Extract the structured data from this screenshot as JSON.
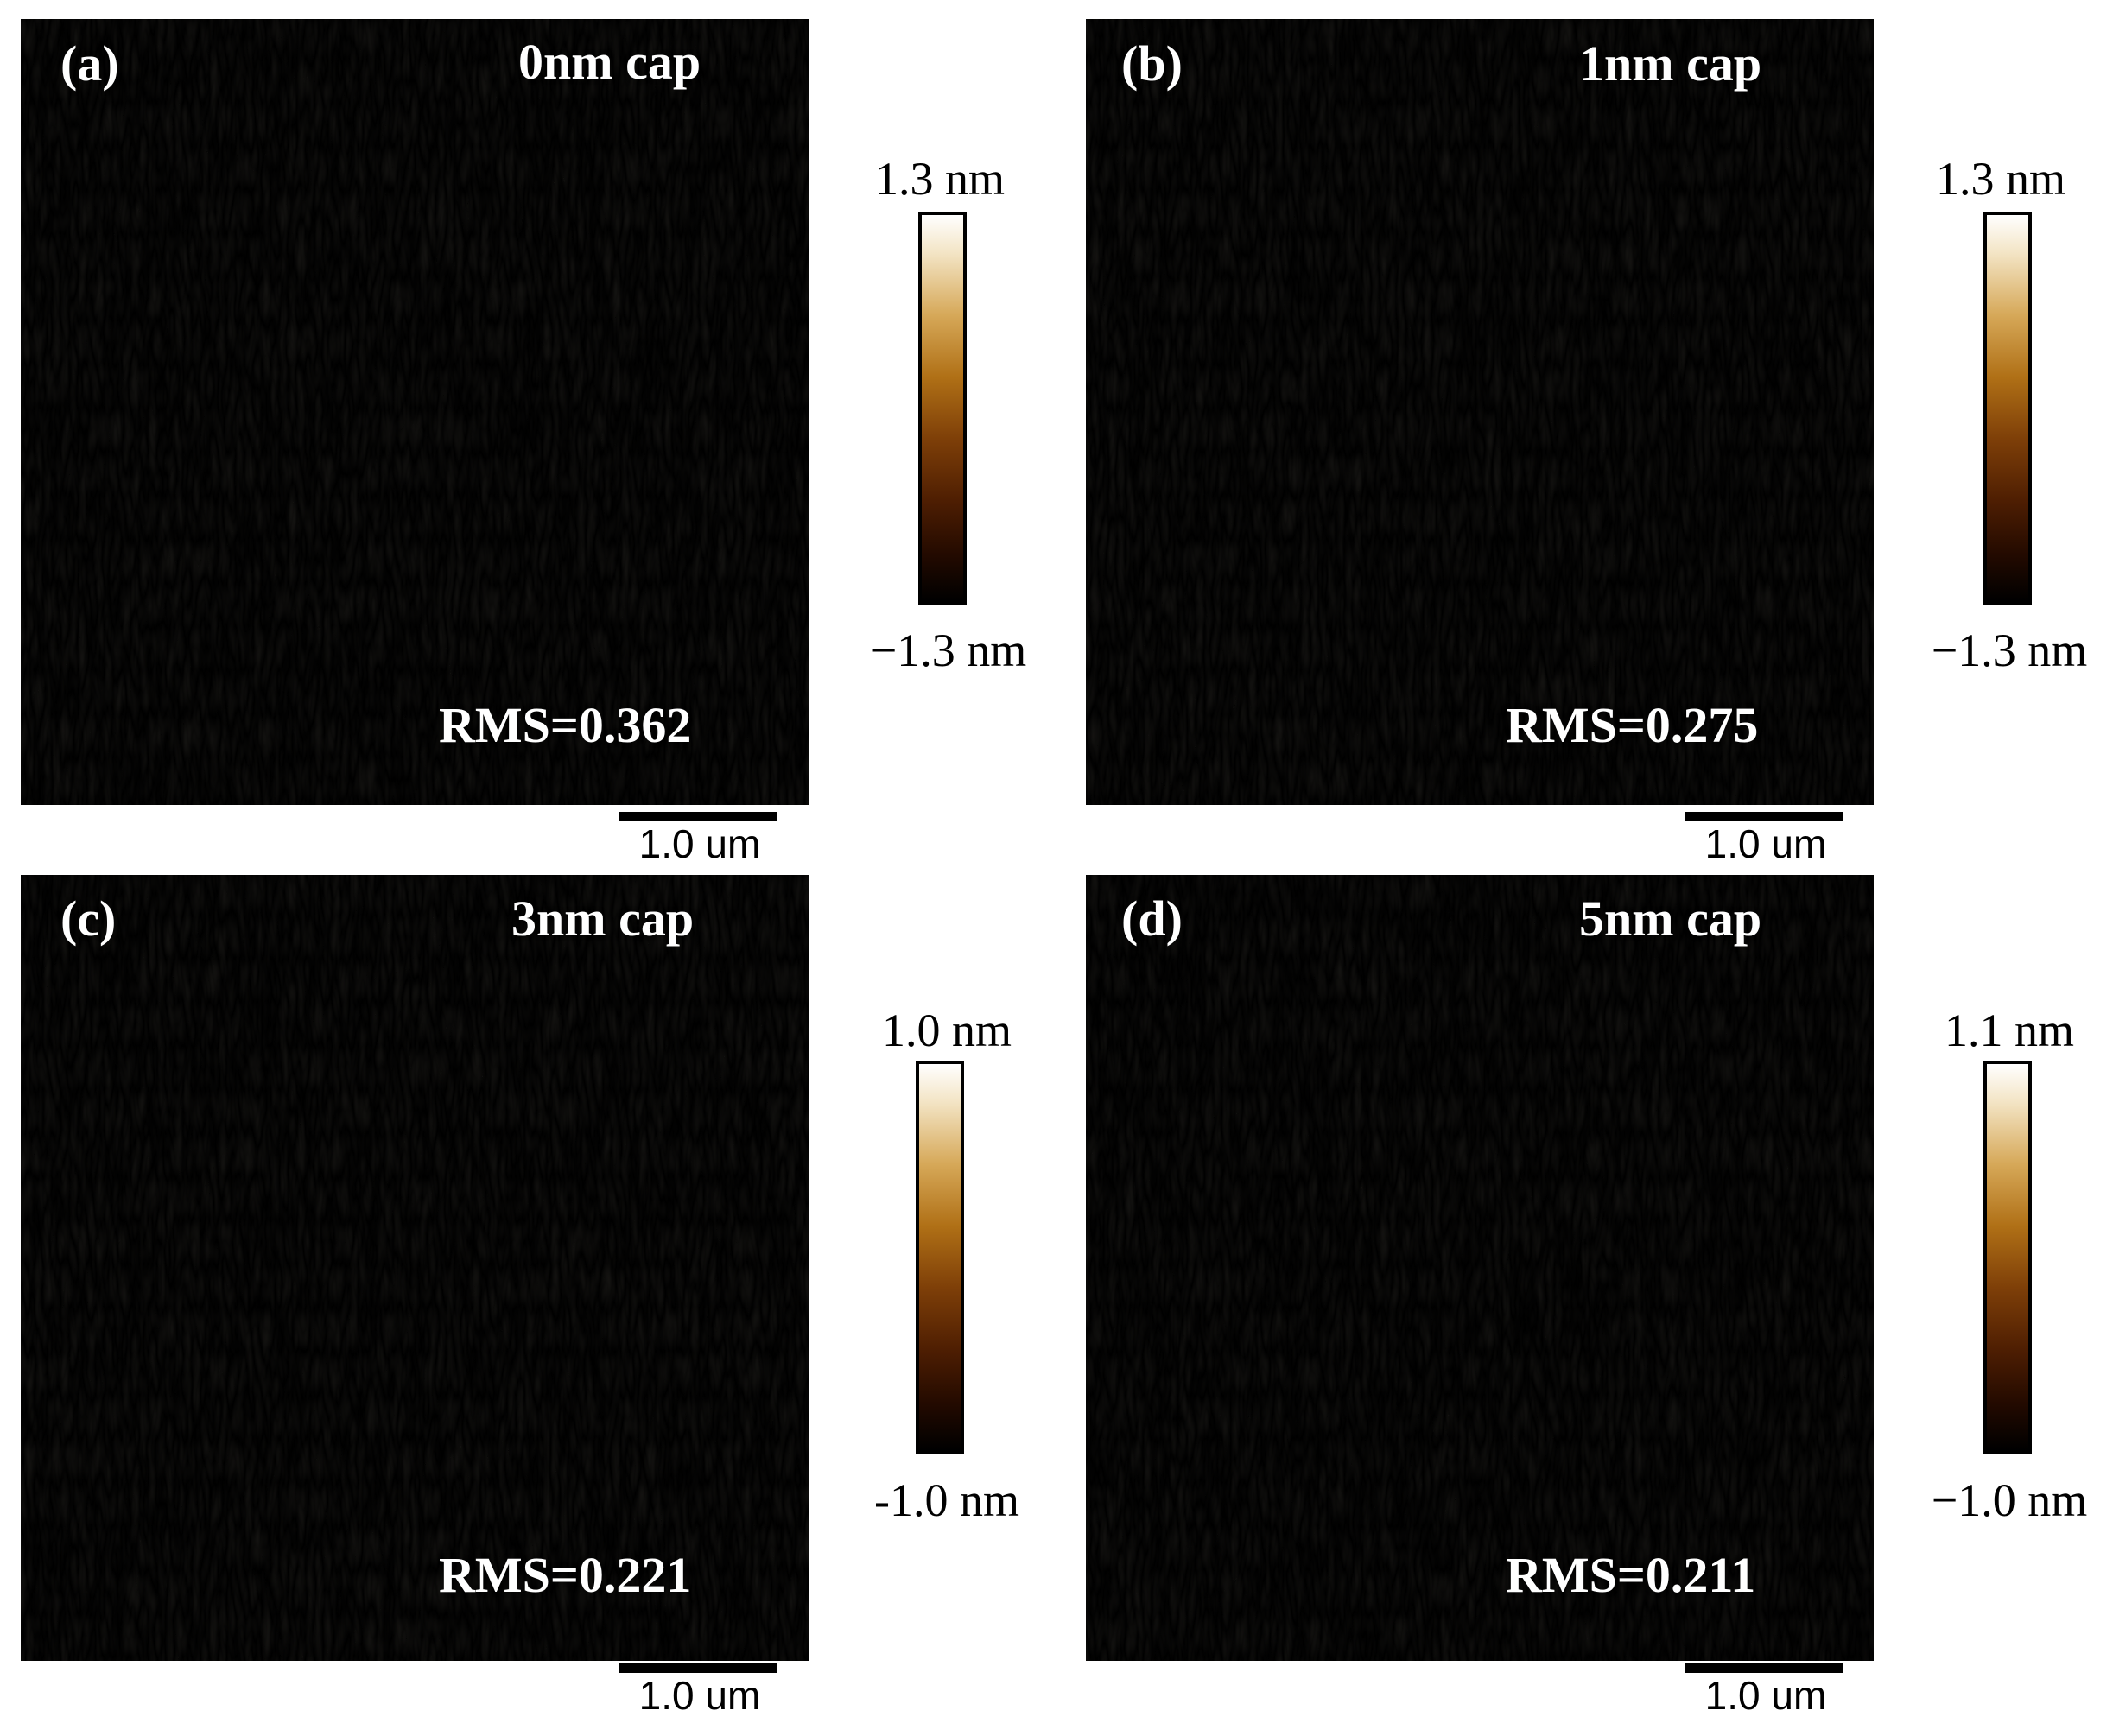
{
  "panels": [
    {
      "letter": "(a)",
      "cap": "0nm cap",
      "rms": "RMS=0.362",
      "scale": "1.0 um",
      "cmax": "1.3 nm",
      "cmin": "−1.3 nm",
      "seed": 3
    },
    {
      "letter": "(b)",
      "cap": "1nm cap",
      "rms": "RMS=0.275",
      "scale": "1.0 um",
      "cmax": "1.3 nm",
      "cmin": "−1.3 nm",
      "seed": 11
    },
    {
      "letter": "(c)",
      "cap": "3nm cap",
      "rms": "RMS=0.221",
      "scale": "1.0 um",
      "cmax": "1.0 nm",
      "cmin": "-1.0 nm",
      "seed": 23
    },
    {
      "letter": "(d)",
      "cap": "5nm cap",
      "rms": "RMS=0.211",
      "scale": "1.0 um",
      "cmax": "1.1 nm",
      "cmin": "−1.0 nm",
      "seed": 37
    }
  ],
  "colors": {
    "dark": "#000000",
    "mid": "#8a4a0c",
    "light": "#ffffff"
  }
}
